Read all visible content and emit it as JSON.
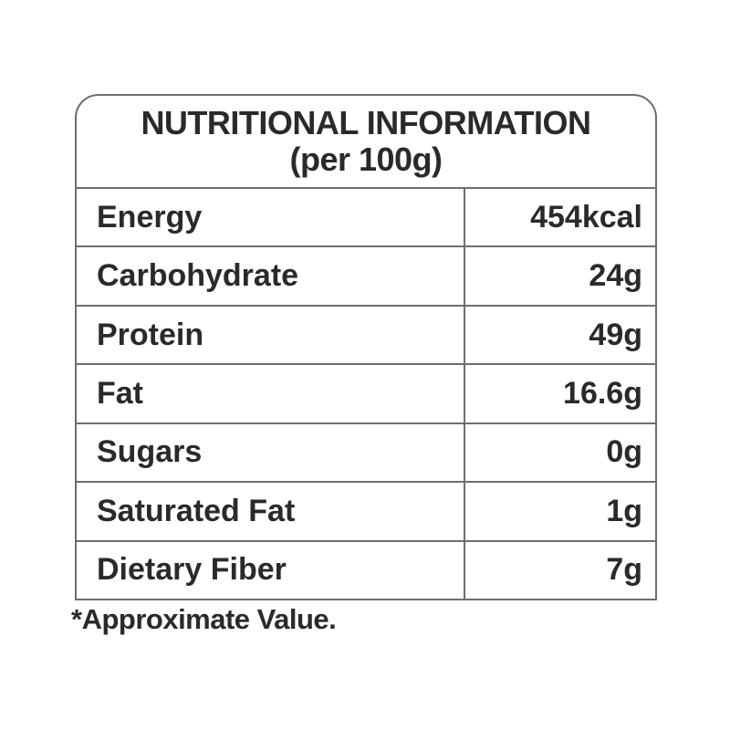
{
  "table": {
    "title_line1": "NUTRITIONAL INFORMATION",
    "title_line2": "(per 100g)",
    "rows": [
      {
        "label": "Energy",
        "value": "454kcal"
      },
      {
        "label": "Carbohydrate",
        "value": "24g"
      },
      {
        "label": "Protein",
        "value": "49g"
      },
      {
        "label": "Fat",
        "value": "16.6g"
      },
      {
        "label": "Sugars",
        "value": "0g"
      },
      {
        "label": "Saturated Fat",
        "value": "1g"
      },
      {
        "label": "Dietary Fiber",
        "value": "7g"
      }
    ],
    "footnote": "*Approximate Value."
  },
  "colors": {
    "border": "#6d6e71",
    "text": "#2a2a2a",
    "background": "#ffffff"
  }
}
